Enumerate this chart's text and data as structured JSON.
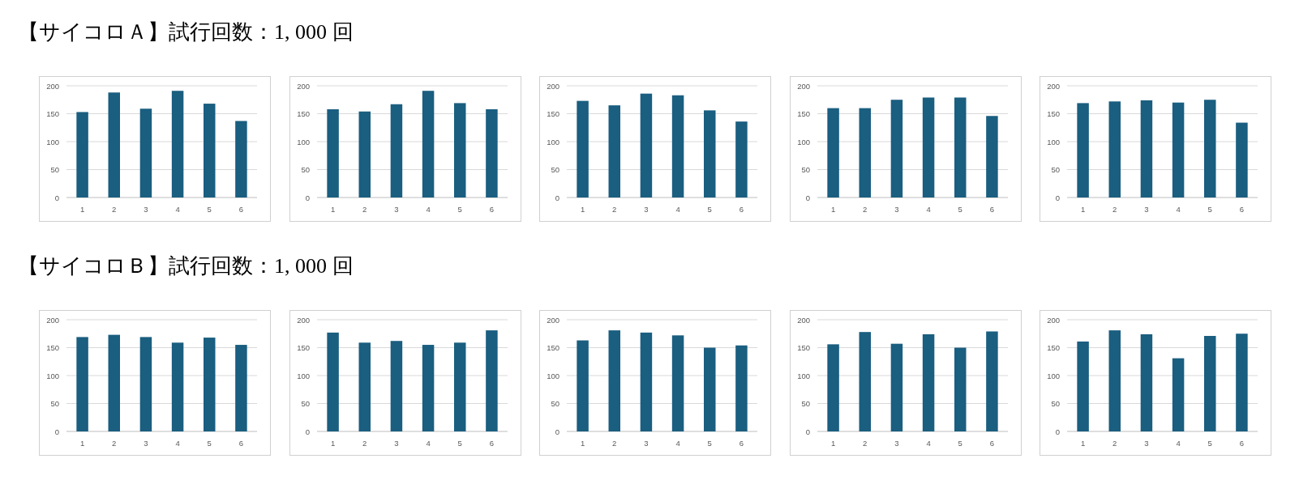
{
  "chart_data": [
    {
      "type": "bar",
      "title": "【サイコロＡ】試行回数：1, 000 回",
      "categories": [
        "1",
        "2",
        "3",
        "4",
        "5",
        "6"
      ],
      "values": [
        153,
        188,
        159,
        191,
        168,
        137
      ],
      "color": "#1a5e80",
      "ylim": [
        0,
        200
      ],
      "yticks": [
        0,
        50,
        100,
        150,
        200
      ],
      "grid": "y"
    },
    {
      "type": "bar",
      "categories": [
        "1",
        "2",
        "3",
        "4",
        "5",
        "6"
      ],
      "values": [
        158,
        154,
        167,
        191,
        169,
        158
      ],
      "color": "#1a5e80",
      "ylim": [
        0,
        200
      ],
      "yticks": [
        0,
        50,
        100,
        150,
        200
      ],
      "grid": "y"
    },
    {
      "type": "bar",
      "categories": [
        "1",
        "2",
        "3",
        "4",
        "5",
        "6"
      ],
      "values": [
        173,
        165,
        186,
        183,
        156,
        136
      ],
      "color": "#1a5e80",
      "ylim": [
        0,
        200
      ],
      "yticks": [
        0,
        50,
        100,
        150,
        200
      ],
      "grid": "y"
    },
    {
      "type": "bar",
      "categories": [
        "1",
        "2",
        "3",
        "4",
        "5",
        "6"
      ],
      "values": [
        160,
        160,
        175,
        179,
        179,
        146
      ],
      "color": "#1a5e80",
      "ylim": [
        0,
        200
      ],
      "yticks": [
        0,
        50,
        100,
        150,
        200
      ],
      "grid": "y"
    },
    {
      "type": "bar",
      "categories": [
        "1",
        "2",
        "3",
        "4",
        "5",
        "6"
      ],
      "values": [
        169,
        172,
        174,
        170,
        175,
        134
      ],
      "color": "#1a5e80",
      "ylim": [
        0,
        200
      ],
      "yticks": [
        0,
        50,
        100,
        150,
        200
      ],
      "grid": "y"
    },
    {
      "type": "bar",
      "title": "【サイコロＢ】試行回数：1, 000 回",
      "categories": [
        "1",
        "2",
        "3",
        "4",
        "5",
        "6"
      ],
      "values": [
        169,
        173,
        169,
        159,
        168,
        155
      ],
      "color": "#1a5e80",
      "ylim": [
        0,
        200
      ],
      "yticks": [
        0,
        50,
        100,
        150,
        200
      ],
      "grid": "y"
    },
    {
      "type": "bar",
      "categories": [
        "1",
        "2",
        "3",
        "4",
        "5",
        "6"
      ],
      "values": [
        177,
        159,
        162,
        155,
        159,
        181
      ],
      "color": "#1a5e80",
      "ylim": [
        0,
        200
      ],
      "yticks": [
        0,
        50,
        100,
        150,
        200
      ],
      "grid": "y"
    },
    {
      "type": "bar",
      "categories": [
        "1",
        "2",
        "3",
        "4",
        "5",
        "6"
      ],
      "values": [
        163,
        181,
        177,
        172,
        150,
        154
      ],
      "color": "#1a5e80",
      "ylim": [
        0,
        200
      ],
      "yticks": [
        0,
        50,
        100,
        150,
        200
      ],
      "grid": "y"
    },
    {
      "type": "bar",
      "categories": [
        "1",
        "2",
        "3",
        "4",
        "5",
        "6"
      ],
      "values": [
        156,
        178,
        157,
        174,
        150,
        179
      ],
      "color": "#1a5e80",
      "ylim": [
        0,
        200
      ],
      "yticks": [
        0,
        50,
        100,
        150,
        200
      ],
      "grid": "y"
    },
    {
      "type": "bar",
      "categories": [
        "1",
        "2",
        "3",
        "4",
        "5",
        "6"
      ],
      "values": [
        161,
        181,
        174,
        131,
        171,
        175
      ],
      "color": "#1a5e80",
      "ylim": [
        0,
        200
      ],
      "yticks": [
        0,
        50,
        100,
        150,
        200
      ],
      "grid": "y"
    }
  ]
}
